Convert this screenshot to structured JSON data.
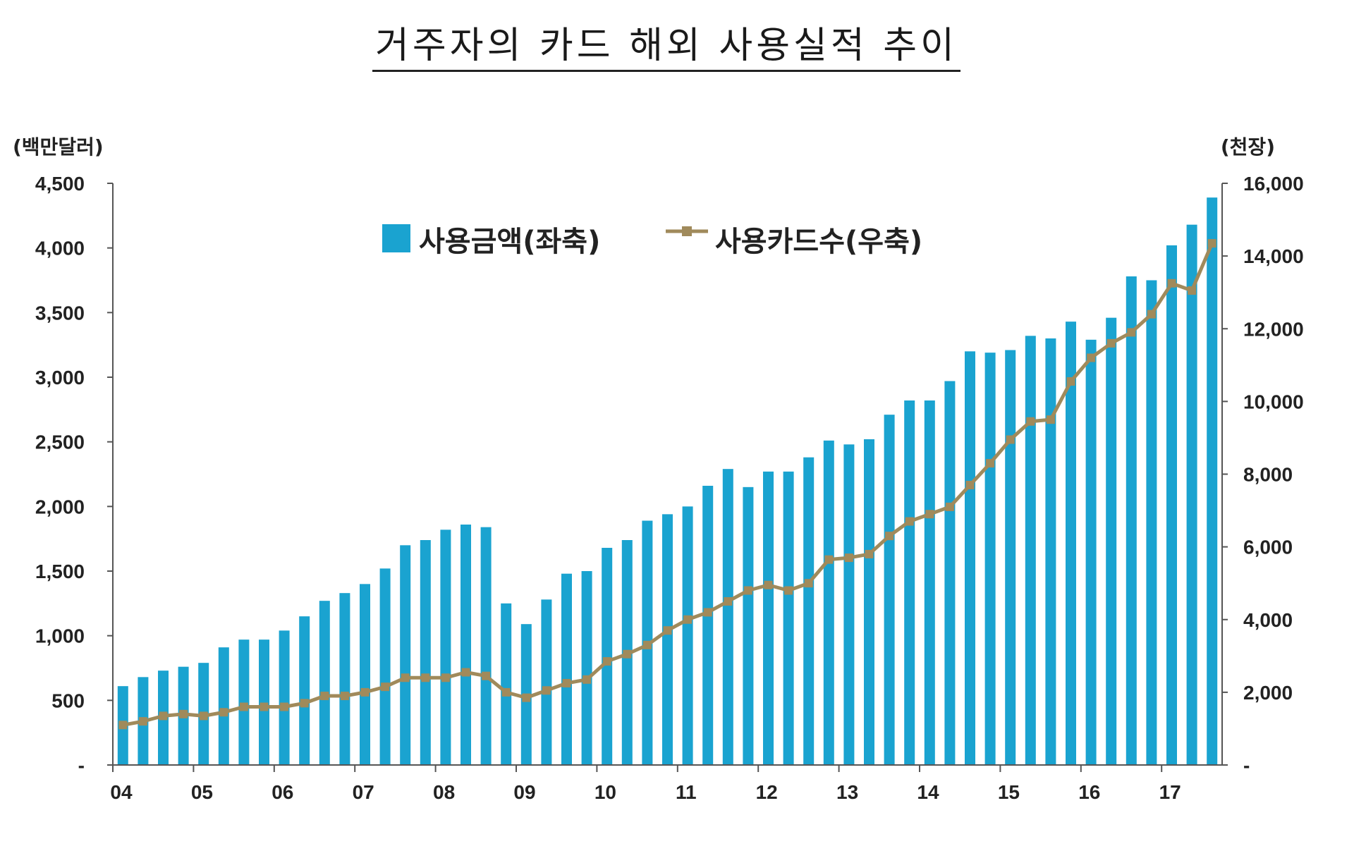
{
  "chart_data": {
    "type": "bar",
    "title": "거주자의 카드 해외 사용실적 추이",
    "y_left_unit": "(백만달러)",
    "y_right_unit": "(천장)",
    "y_left_ticks": [
      "-",
      "500",
      "1,000",
      "1,500",
      "2,000",
      "2,500",
      "3,000",
      "3,500",
      "4,000",
      "4,500"
    ],
    "y_right_ticks": [
      "-",
      "2,000",
      "4,000",
      "6,000",
      "8,000",
      "10,000",
      "12,000",
      "14,000",
      "16,000"
    ],
    "ylim_left": [
      0,
      4500
    ],
    "ylim_right": [
      0,
      16000
    ],
    "x_tick_labels": [
      "04",
      "05",
      "06",
      "07",
      "08",
      "09",
      "10",
      "11",
      "12",
      "13",
      "14",
      "15",
      "16",
      "17"
    ],
    "legend_position": "top-center",
    "grid": false,
    "colors": {
      "bar": "#1aa3d0",
      "line": "#a08a5b"
    },
    "series": [
      {
        "name": "사용금액(좌축)",
        "type": "bar",
        "axis": "left",
        "values": [
          610,
          680,
          730,
          760,
          790,
          910,
          970,
          970,
          1040,
          1150,
          1270,
          1330,
          1400,
          1520,
          1700,
          1740,
          1820,
          1860,
          1840,
          1250,
          1090,
          1280,
          1480,
          1500,
          1680,
          1740,
          1890,
          1940,
          2000,
          2160,
          2290,
          2150,
          2270,
          2270,
          2380,
          2510,
          2480,
          2520,
          2710,
          2820,
          2820,
          2970,
          3200,
          3190,
          3210,
          3320,
          3300,
          3430,
          3290,
          3460,
          3780,
          3750,
          4020,
          4180,
          4390
        ]
      },
      {
        "name": "사용카드수(우축)",
        "type": "line",
        "axis": "right",
        "values": [
          1100,
          1200,
          1350,
          1400,
          1350,
          1450,
          1600,
          1600,
          1600,
          1700,
          1900,
          1900,
          2000,
          2150,
          2400,
          2400,
          2400,
          2550,
          2450,
          2000,
          1850,
          2050,
          2250,
          2350,
          2850,
          3050,
          3300,
          3700,
          4000,
          4200,
          4500,
          4800,
          4950,
          4800,
          5000,
          5650,
          5700,
          5800,
          6300,
          6700,
          6900,
          7100,
          7700,
          8300,
          8950,
          9450,
          9500,
          10550,
          11200,
          11600,
          11900,
          12400,
          13250,
          13050,
          14350
        ]
      }
    ]
  }
}
